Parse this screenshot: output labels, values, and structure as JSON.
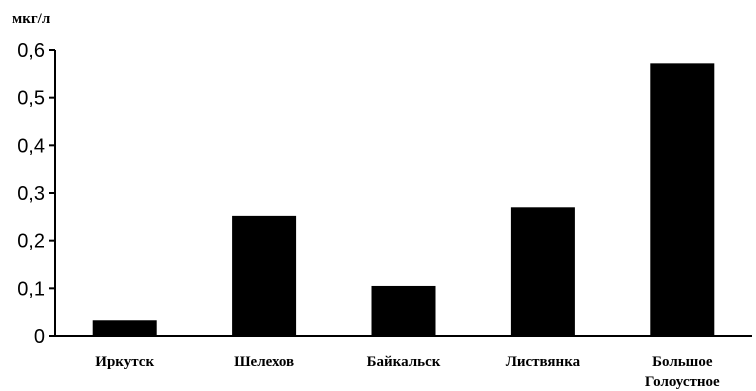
{
  "chart_data": {
    "type": "bar",
    "ylabel": "мкг/л",
    "categories": [
      "Иркутск",
      "Шелехов",
      "Байкальск",
      "Листвянка",
      "Большое Голоустное"
    ],
    "category_lines": [
      [
        "Иркутск"
      ],
      [
        "Шелехов"
      ],
      [
        "Байкальск"
      ],
      [
        "Листвянка"
      ],
      [
        "Большое",
        "Голоустное"
      ]
    ],
    "values": [
      0.033,
      0.252,
      0.105,
      0.27,
      0.572
    ],
    "ylim": [
      0,
      0.6
    ],
    "yticks": [
      0,
      0.1,
      0.2,
      0.3,
      0.4,
      0.5,
      0.6
    ],
    "ytick_labels": [
      "0",
      "0,1",
      "0,2",
      "0,3",
      "0,4",
      "0,5",
      "0,6"
    ],
    "grid": false,
    "legend": "none",
    "bar_color": "#000000",
    "axis_color": "#000000"
  }
}
